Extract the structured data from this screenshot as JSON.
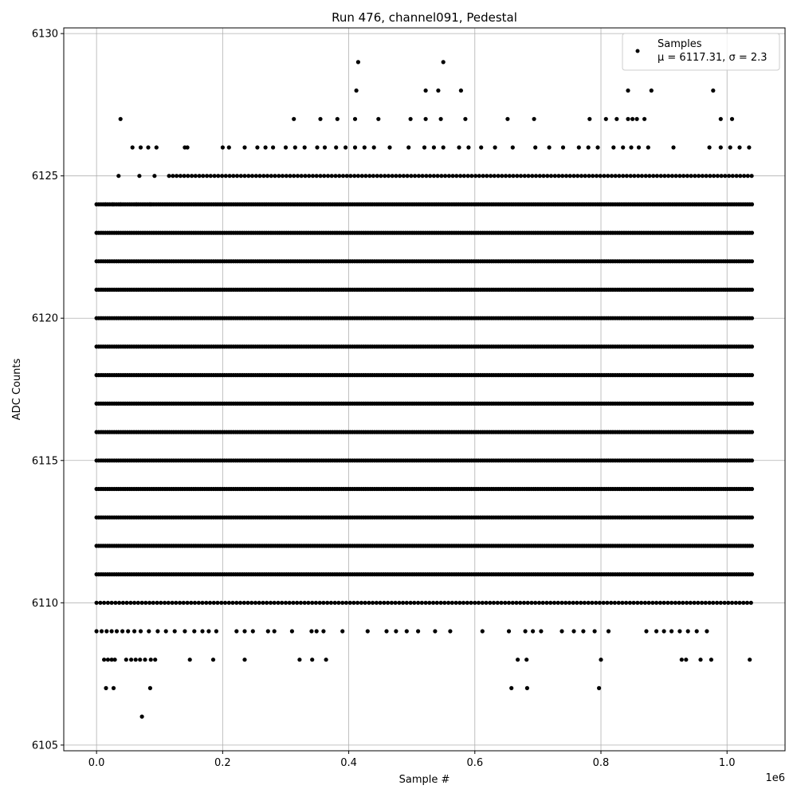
{
  "chart_data": {
    "type": "scatter",
    "title": "Run 476, channel091, Pedestal",
    "xlabel": "Sample #",
    "ylabel": "ADC Counts",
    "x_offset_label": "1e6",
    "xlim": [
      -0.052,
      1.092
    ],
    "ylim": [
      6104.8,
      6130.2
    ],
    "xticks": [
      0.0,
      0.2,
      0.4,
      0.6,
      0.8,
      1.0
    ],
    "xtick_labels": [
      "0.0",
      "0.2",
      "0.4",
      "0.6",
      "0.8",
      "1.0"
    ],
    "yticks": [
      6105,
      6110,
      6115,
      6120,
      6125,
      6130
    ],
    "ytick_labels": [
      "6105",
      "6110",
      "6115",
      "6120",
      "6125",
      "6130"
    ],
    "grid": true,
    "legend_position": "top-right",
    "marker_color": "#000000",
    "series": [
      {
        "name": "Samples",
        "stats_label": "μ = 6117.31, σ = 2.3",
        "dense_bands": [
          {
            "y": 6111,
            "x_range": [
              0.0,
              1.042
            ]
          },
          {
            "y": 6112,
            "x_range": [
              0.0,
              1.042
            ]
          },
          {
            "y": 6113,
            "x_range": [
              0.0,
              1.042
            ]
          },
          {
            "y": 6114,
            "x_range": [
              0.0,
              1.042
            ]
          },
          {
            "y": 6115,
            "x_range": [
              0.0,
              1.042
            ]
          },
          {
            "y": 6116,
            "x_range": [
              0.0,
              1.042
            ]
          },
          {
            "y": 6117,
            "x_range": [
              0.0,
              1.042
            ]
          },
          {
            "y": 6118,
            "x_range": [
              0.0,
              1.042
            ]
          },
          {
            "y": 6119,
            "x_range": [
              0.0,
              1.042
            ]
          },
          {
            "y": 6120,
            "x_range": [
              0.0,
              1.042
            ]
          },
          {
            "y": 6121,
            "x_range": [
              0.0,
              1.042
            ]
          },
          {
            "y": 6122,
            "x_range": [
              0.0,
              1.042
            ]
          },
          {
            "y": 6123,
            "x_range": [
              0.0,
              1.042
            ]
          },
          {
            "y": 6124,
            "x_range": [
              0.0,
              1.042
            ]
          }
        ],
        "medium_bands": [
          {
            "y": 6110,
            "x_range": [
              0.0,
              1.042
            ]
          },
          {
            "y": 6125,
            "x_range": [
              0.115,
              1.042
            ]
          }
        ],
        "sparse_points": [
          [
            0.072,
            6106
          ],
          [
            0.015,
            6107
          ],
          [
            0.027,
            6107
          ],
          [
            0.085,
            6107
          ],
          [
            0.658,
            6107
          ],
          [
            0.683,
            6107
          ],
          [
            0.797,
            6107
          ],
          [
            0.012,
            6108
          ],
          [
            0.018,
            6108
          ],
          [
            0.024,
            6108
          ],
          [
            0.029,
            6108
          ],
          [
            0.047,
            6108
          ],
          [
            0.055,
            6108
          ],
          [
            0.062,
            6108
          ],
          [
            0.069,
            6108
          ],
          [
            0.077,
            6108
          ],
          [
            0.086,
            6108
          ],
          [
            0.093,
            6108
          ],
          [
            0.148,
            6108
          ],
          [
            0.185,
            6108
          ],
          [
            0.235,
            6108
          ],
          [
            0.322,
            6108
          ],
          [
            0.342,
            6108
          ],
          [
            0.364,
            6108
          ],
          [
            0.668,
            6108
          ],
          [
            0.682,
            6108
          ],
          [
            0.8,
            6108
          ],
          [
            0.928,
            6108
          ],
          [
            0.935,
            6108
          ],
          [
            0.958,
            6108
          ],
          [
            0.975,
            6108
          ],
          [
            1.036,
            6108
          ],
          [
            0.0,
            6109
          ],
          [
            0.008,
            6109
          ],
          [
            0.016,
            6109
          ],
          [
            0.024,
            6109
          ],
          [
            0.032,
            6109
          ],
          [
            0.041,
            6109
          ],
          [
            0.05,
            6109
          ],
          [
            0.06,
            6109
          ],
          [
            0.07,
            6109
          ],
          [
            0.083,
            6109
          ],
          [
            0.097,
            6109
          ],
          [
            0.11,
            6109
          ],
          [
            0.124,
            6109
          ],
          [
            0.14,
            6109
          ],
          [
            0.155,
            6109
          ],
          [
            0.168,
            6109
          ],
          [
            0.178,
            6109
          ],
          [
            0.19,
            6109
          ],
          [
            0.222,
            6109
          ],
          [
            0.235,
            6109
          ],
          [
            0.248,
            6109
          ],
          [
            0.272,
            6109
          ],
          [
            0.282,
            6109
          ],
          [
            0.31,
            6109
          ],
          [
            0.341,
            6109
          ],
          [
            0.349,
            6109
          ],
          [
            0.36,
            6109
          ],
          [
            0.39,
            6109
          ],
          [
            0.43,
            6109
          ],
          [
            0.46,
            6109
          ],
          [
            0.475,
            6109
          ],
          [
            0.492,
            6109
          ],
          [
            0.51,
            6109
          ],
          [
            0.537,
            6109
          ],
          [
            0.561,
            6109
          ],
          [
            0.612,
            6109
          ],
          [
            0.654,
            6109
          ],
          [
            0.68,
            6109
          ],
          [
            0.692,
            6109
          ],
          [
            0.705,
            6109
          ],
          [
            0.738,
            6109
          ],
          [
            0.757,
            6109
          ],
          [
            0.772,
            6109
          ],
          [
            0.79,
            6109
          ],
          [
            0.812,
            6109
          ],
          [
            0.872,
            6109
          ],
          [
            0.888,
            6109
          ],
          [
            0.9,
            6109
          ],
          [
            0.912,
            6109
          ],
          [
            0.925,
            6109
          ],
          [
            0.938,
            6109
          ],
          [
            0.952,
            6109
          ],
          [
            0.968,
            6109
          ],
          [
            0.014,
            6124
          ],
          [
            0.026,
            6124
          ],
          [
            0.038,
            6124
          ],
          [
            0.063,
            6124
          ],
          [
            0.085,
            6124
          ],
          [
            0.035,
            6125
          ],
          [
            0.068,
            6125
          ],
          [
            0.092,
            6125
          ],
          [
            0.057,
            6126
          ],
          [
            0.07,
            6126
          ],
          [
            0.082,
            6126
          ],
          [
            0.095,
            6126
          ],
          [
            0.14,
            6126
          ],
          [
            0.144,
            6126
          ],
          [
            0.2,
            6126
          ],
          [
            0.21,
            6126
          ],
          [
            0.235,
            6126
          ],
          [
            0.255,
            6126
          ],
          [
            0.268,
            6126
          ],
          [
            0.28,
            6126
          ],
          [
            0.3,
            6126
          ],
          [
            0.315,
            6126
          ],
          [
            0.33,
            6126
          ],
          [
            0.35,
            6126
          ],
          [
            0.362,
            6126
          ],
          [
            0.38,
            6126
          ],
          [
            0.395,
            6126
          ],
          [
            0.41,
            6126
          ],
          [
            0.425,
            6126
          ],
          [
            0.44,
            6126
          ],
          [
            0.465,
            6126
          ],
          [
            0.495,
            6126
          ],
          [
            0.52,
            6126
          ],
          [
            0.535,
            6126
          ],
          [
            0.55,
            6126
          ],
          [
            0.575,
            6126
          ],
          [
            0.59,
            6126
          ],
          [
            0.61,
            6126
          ],
          [
            0.632,
            6126
          ],
          [
            0.66,
            6126
          ],
          [
            0.696,
            6126
          ],
          [
            0.718,
            6126
          ],
          [
            0.74,
            6126
          ],
          [
            0.765,
            6126
          ],
          [
            0.78,
            6126
          ],
          [
            0.795,
            6126
          ],
          [
            0.82,
            6126
          ],
          [
            0.835,
            6126
          ],
          [
            0.848,
            6126
          ],
          [
            0.86,
            6126
          ],
          [
            0.875,
            6126
          ],
          [
            0.915,
            6126
          ],
          [
            0.972,
            6126
          ],
          [
            0.99,
            6126
          ],
          [
            1.005,
            6126
          ],
          [
            1.02,
            6126
          ],
          [
            1.035,
            6126
          ],
          [
            0.038,
            6127
          ],
          [
            0.313,
            6127
          ],
          [
            0.355,
            6127
          ],
          [
            0.382,
            6127
          ],
          [
            0.41,
            6127
          ],
          [
            0.447,
            6127
          ],
          [
            0.498,
            6127
          ],
          [
            0.522,
            6127
          ],
          [
            0.546,
            6127
          ],
          [
            0.585,
            6127
          ],
          [
            0.652,
            6127
          ],
          [
            0.694,
            6127
          ],
          [
            0.782,
            6127
          ],
          [
            0.808,
            6127
          ],
          [
            0.825,
            6127
          ],
          [
            0.843,
            6127
          ],
          [
            0.85,
            6127
          ],
          [
            0.857,
            6127
          ],
          [
            0.869,
            6127
          ],
          [
            0.99,
            6127
          ],
          [
            1.008,
            6127
          ],
          [
            0.412,
            6128
          ],
          [
            0.522,
            6128
          ],
          [
            0.542,
            6128
          ],
          [
            0.578,
            6128
          ],
          [
            0.843,
            6128
          ],
          [
            0.88,
            6128
          ],
          [
            0.978,
            6128
          ],
          [
            0.415,
            6129
          ],
          [
            0.55,
            6129
          ]
        ]
      }
    ]
  }
}
